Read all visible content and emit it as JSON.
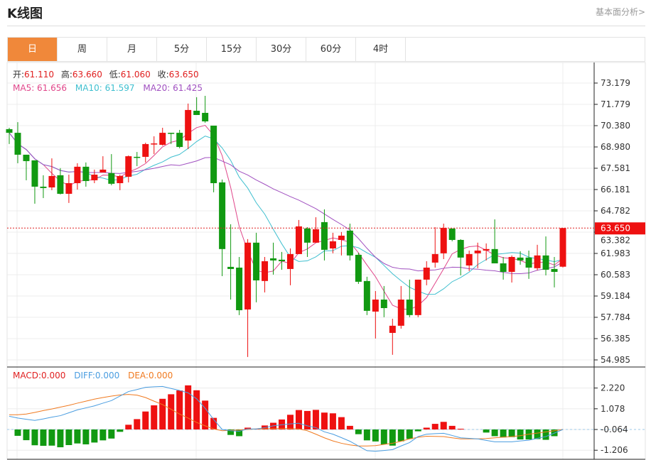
{
  "header": {
    "title": "K线图",
    "link": "基本面分析>"
  },
  "tabs": [
    {
      "label": "日",
      "active": true
    },
    {
      "label": "周"
    },
    {
      "label": "月"
    },
    {
      "label": "5分"
    },
    {
      "label": "15分"
    },
    {
      "label": "30分"
    },
    {
      "label": "60分"
    },
    {
      "label": "4时"
    }
  ],
  "legend": {
    "open_label": "开:",
    "open": "61.110",
    "high_label": "高:",
    "high": "63.660",
    "low_label": "低:",
    "low": "61.060",
    "close_label": "收:",
    "close": "63.650",
    "ma5": "MA5: 61.656",
    "ma10": "MA10: 61.597",
    "ma20": "MA20: 61.425"
  },
  "macd_legend": {
    "macd": "MACD:0.000",
    "diff": "DIFF:0.000",
    "dea": "DEA:0.000"
  },
  "colors": {
    "up": "#ee1111",
    "down": "#119911",
    "ma5": "#e0468a",
    "ma10": "#3fbfcf",
    "ma20": "#a050c0",
    "diff": "#4a9de0",
    "dea": "#f07a20",
    "accent": "#f0883a"
  },
  "chart_data": [
    {
      "type": "candlestick",
      "ylim": [
        54.985,
        73.179
      ],
      "yticks": [
        "73.179",
        "71.779",
        "70.380",
        "68.980",
        "67.581",
        "66.181",
        "64.782",
        "63.382",
        "61.983",
        "60.583",
        "59.184",
        "57.784",
        "56.385",
        "54.985"
      ],
      "last_price": "63.650",
      "ohlc": [
        [
          70.15,
          70.24,
          69.17,
          69.91
        ],
        [
          69.91,
          70.61,
          67.91,
          68.47
        ],
        [
          68.47,
          68.47,
          66.79,
          68.05
        ],
        [
          68.1,
          68.1,
          65.25,
          66.37
        ],
        [
          66.37,
          67.12,
          65.62,
          66.28
        ],
        [
          66.32,
          68.23,
          66.14,
          67.07
        ],
        [
          67.12,
          67.59,
          65.86,
          65.9
        ],
        [
          65.9,
          67.16,
          65.3,
          66.6
        ],
        [
          66.6,
          67.91,
          66.18,
          67.68
        ],
        [
          67.68,
          67.96,
          66.37,
          66.74
        ],
        [
          66.79,
          67.49,
          66.6,
          67.16
        ],
        [
          67.3,
          68.37,
          67.3,
          67.49
        ],
        [
          67.26,
          68.51,
          66.46,
          66.56
        ],
        [
          66.6,
          67.16,
          66.14,
          67.07
        ],
        [
          67.02,
          68.42,
          66.65,
          68.37
        ],
        [
          68.33,
          68.65,
          67.72,
          68.28
        ],
        [
          68.33,
          69.26,
          67.96,
          69.17
        ],
        [
          69.17,
          69.68,
          68.51,
          69.21
        ],
        [
          69.12,
          70.24,
          69.07,
          69.91
        ],
        [
          69.91,
          69.91,
          69.17,
          69.87
        ],
        [
          69.91,
          70.1,
          68.89,
          68.98
        ],
        [
          69.4,
          71.83,
          68.84,
          71.41
        ],
        [
          71.36,
          72.25,
          71.08,
          71.08
        ],
        [
          71.22,
          72.34,
          70.57,
          70.66
        ],
        [
          70.38,
          70.38,
          66.0,
          66.6
        ],
        [
          66.65,
          66.84,
          60.49,
          62.27
        ],
        [
          61.1,
          63.9,
          58.95,
          60.96
        ],
        [
          61.05,
          61.75,
          57.93,
          58.25
        ],
        [
          58.3,
          62.92,
          55.18,
          62.69
        ],
        [
          62.69,
          63.34,
          58.77,
          60.21
        ],
        [
          60.17,
          61.75,
          59.42,
          61.47
        ],
        [
          61.66,
          62.69,
          60.59,
          61.52
        ],
        [
          61.57,
          62.08,
          60.91,
          61.47
        ],
        [
          60.96,
          62.31,
          59.89,
          61.94
        ],
        [
          61.94,
          64.18,
          61.94,
          63.76
        ],
        [
          63.62,
          63.71,
          61.75,
          62.69
        ],
        [
          62.69,
          64.36,
          62.69,
          63.57
        ],
        [
          64.04,
          64.88,
          61.52,
          62.22
        ],
        [
          62.31,
          63.34,
          61.99,
          62.78
        ],
        [
          62.87,
          63.39,
          61.85,
          63.15
        ],
        [
          63.48,
          63.94,
          61.52,
          61.85
        ],
        [
          61.89,
          62.03,
          59.98,
          60.12
        ],
        [
          60.17,
          60.45,
          57.93,
          58.21
        ],
        [
          58.16,
          59.51,
          56.39,
          58.95
        ],
        [
          58.95,
          59.84,
          57.79,
          58.39
        ],
        [
          56.76,
          57.69,
          55.32,
          57.23
        ],
        [
          57.23,
          59.84,
          57.04,
          58.95
        ],
        [
          58.95,
          60.26,
          57.79,
          57.93
        ],
        [
          57.93,
          60.26,
          57.79,
          60.26
        ],
        [
          60.26,
          61.47,
          59.89,
          61.05
        ],
        [
          61.38,
          63.71,
          61.05,
          61.94
        ],
        [
          61.99,
          63.94,
          61.61,
          63.66
        ],
        [
          63.62,
          63.62,
          62.78,
          62.87
        ],
        [
          62.87,
          62.92,
          60.54,
          61.71
        ],
        [
          61.19,
          62.17,
          60.82,
          61.94
        ],
        [
          61.99,
          62.69,
          61.01,
          62.17
        ],
        [
          62.17,
          62.64,
          61.52,
          62.27
        ],
        [
          62.27,
          64.22,
          61.33,
          61.33
        ],
        [
          61.33,
          61.75,
          60.26,
          60.77
        ],
        [
          60.77,
          61.85,
          60.07,
          61.75
        ],
        [
          61.71,
          62.13,
          61.24,
          61.52
        ],
        [
          61.71,
          62.17,
          60.31,
          61.05
        ],
        [
          61.01,
          62.55,
          60.87,
          61.85
        ],
        [
          61.85,
          63.1,
          60.54,
          60.91
        ],
        [
          60.96,
          61.75,
          59.75,
          60.77
        ],
        [
          61.11,
          63.66,
          61.06,
          63.65
        ]
      ]
    },
    {
      "type": "macd",
      "yticks": [
        "2.220",
        "1.078",
        "-0.064",
        "-1.206"
      ],
      "hist": [
        0,
        -0.35,
        -0.59,
        -0.87,
        -0.9,
        -0.89,
        -0.98,
        -0.86,
        -0.77,
        -0.82,
        -0.72,
        -0.6,
        -0.5,
        -0.13,
        0.26,
        0.57,
        0.99,
        1.33,
        1.69,
        1.94,
        2.15,
        2.43,
        2.16,
        1.59,
        0.64,
        0,
        -0.3,
        -0.37,
        0.1,
        0.02,
        0.22,
        0.37,
        0.55,
        0.81,
        1.07,
        1.02,
        1.08,
        0.93,
        0.89,
        0.68,
        0.2,
        -0.26,
        -0.6,
        -0.66,
        -0.82,
        -0.89,
        -0.65,
        -0.52,
        -0.1,
        0.1,
        0.31,
        0.42,
        0.2,
        0.04,
        0.01,
        -0.01,
        -0.17,
        -0.37,
        -0.44,
        -0.42,
        -0.55,
        -0.55,
        -0.53,
        -0.57,
        -0.37,
        0
      ],
      "diff": [
        0.73,
        0.63,
        0.56,
        0.5,
        0.58,
        0.68,
        0.76,
        0.92,
        1.08,
        1.19,
        1.3,
        1.45,
        1.59,
        1.84,
        2.09,
        2.2,
        2.32,
        2.35,
        2.37,
        2.26,
        2.15,
        2.02,
        1.69,
        1.17,
        0.55,
        0,
        -0.07,
        -0.1,
        0.03,
        0.03,
        0.1,
        0.2,
        0.26,
        0.31,
        0.34,
        0.2,
        0.1,
        -0.13,
        -0.26,
        -0.45,
        -0.65,
        -0.91,
        -1.17,
        -1.2,
        -1.16,
        -1.11,
        -0.91,
        -0.72,
        -0.39,
        -0.26,
        -0.23,
        -0.21,
        -0.33,
        -0.46,
        -0.49,
        -0.52,
        -0.6,
        -0.68,
        -0.68,
        -0.68,
        -0.63,
        -0.59,
        -0.49,
        -0.39,
        -0.2,
        0
      ],
      "dea": [
        0.81,
        0.81,
        0.85,
        0.94,
        1.04,
        1.13,
        1.23,
        1.33,
        1.45,
        1.56,
        1.67,
        1.76,
        1.84,
        1.9,
        1.93,
        1.89,
        1.76,
        1.56,
        1.37,
        1.11,
        0.85,
        0.63,
        0.39,
        0.2,
        0.03,
        -0.07,
        -0.05,
        -0.03,
        0,
        0.03,
        0.04,
        0.05,
        0.05,
        0.05,
        0.03,
        -0.07,
        -0.26,
        -0.46,
        -0.63,
        -0.76,
        -0.85,
        -0.91,
        -0.91,
        -0.89,
        -0.82,
        -0.76,
        -0.65,
        -0.52,
        -0.43,
        -0.37,
        -0.38,
        -0.39,
        -0.46,
        -0.52,
        -0.52,
        -0.52,
        -0.5,
        -0.46,
        -0.42,
        -0.39,
        -0.34,
        -0.26,
        -0.2,
        -0.13,
        -0.07,
        0
      ]
    }
  ]
}
